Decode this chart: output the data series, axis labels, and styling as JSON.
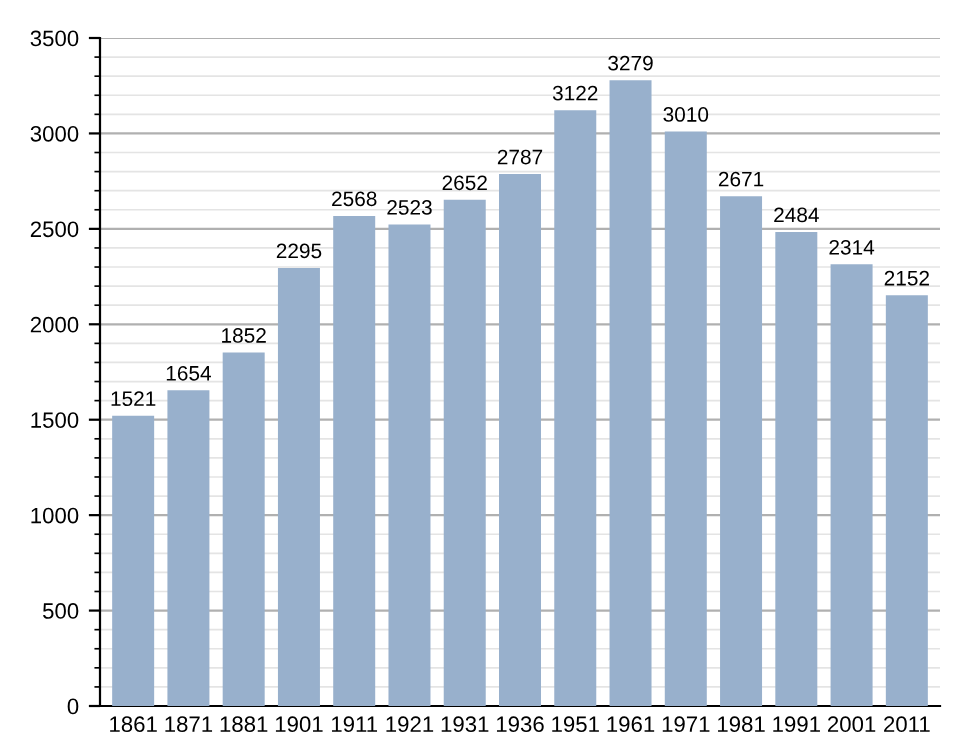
{
  "chart_data": {
    "type": "bar",
    "categories": [
      "1861",
      "1871",
      "1881",
      "1901",
      "1911",
      "1921",
      "1931",
      "1936",
      "1951",
      "1961",
      "1971",
      "1981",
      "1991",
      "2001",
      "2011"
    ],
    "values": [
      1521,
      1654,
      1852,
      2295,
      2568,
      2523,
      2652,
      2787,
      3122,
      3279,
      3010,
      2671,
      2484,
      2314,
      2152
    ],
    "color": "#98b0cc",
    "ylim": [
      0,
      3500
    ],
    "yticks": [
      0,
      500,
      1000,
      1500,
      2000,
      2500,
      3000,
      3500
    ],
    "grid": "y",
    "data_labels": true
  }
}
